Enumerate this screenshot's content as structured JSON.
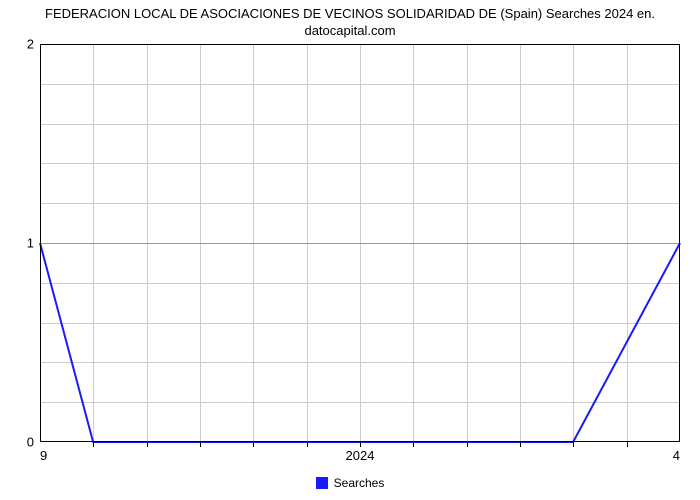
{
  "chart": {
    "type": "line",
    "title_line1": "FEDERACION LOCAL DE ASOCIACIONES DE VECINOS  SOLIDARIDAD  DE (Spain) Searches 2024 en.",
    "title_line2": "datocapital.com",
    "title_fontsize": 13,
    "title_color": "#000000",
    "background_color": "#ffffff",
    "plot_border_color": "#000000",
    "grid_color": "#cccccc",
    "x_axis": {
      "left_label": "9",
      "right_label": "4",
      "center_label": "2024",
      "tick_count": 13,
      "label_fontsize": 13
    },
    "y_axis": {
      "ticks": [
        0,
        1,
        2
      ],
      "label_fontsize": 13
    },
    "grid": {
      "v_count": 12,
      "h_major_count": 2,
      "h_minor_per_major": 5
    },
    "series": [
      {
        "name": "Searches",
        "color": "#1a1aff",
        "line_width": 2,
        "points_norm": [
          [
            0.0,
            1.0
          ],
          [
            0.083,
            0.0
          ],
          [
            0.833,
            0.0
          ],
          [
            1.0,
            1.0
          ]
        ]
      }
    ],
    "legend": {
      "label": "Searches",
      "swatch_color": "#1a1aff",
      "fontsize": 12
    }
  }
}
